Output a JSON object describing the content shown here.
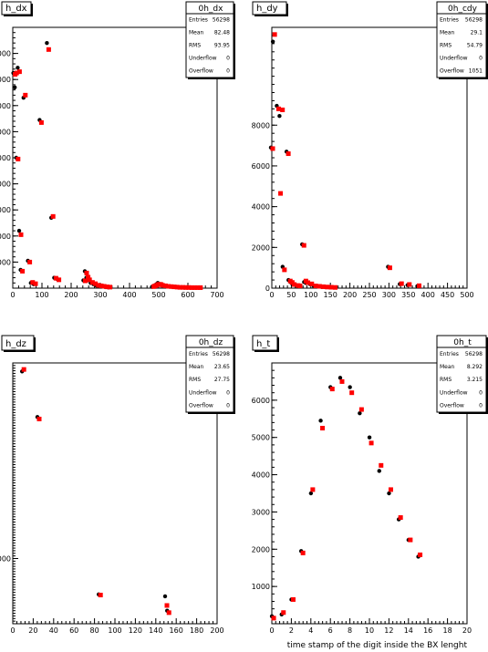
{
  "chart_data": [
    {
      "type": "scatter",
      "title": "h_dx",
      "xlabel": "",
      "xlim": [
        0,
        700
      ],
      "ylim": [
        0,
        10000
      ],
      "xticks": [
        0,
        100,
        200,
        300,
        400,
        500,
        600,
        700
      ],
      "yticks": [
        1000,
        2000,
        3000,
        4000,
        5000,
        6000,
        7000,
        8000,
        9000
      ],
      "stats": {
        "title": "0h_dx",
        "rows": [
          [
            "Entries",
            "56298"
          ],
          [
            "Mean",
            "82.48"
          ],
          [
            "RMS",
            "93.95"
          ],
          [
            "Underflow",
            "0"
          ],
          [
            "Overflow",
            "0"
          ]
        ]
      },
      "series": [
        {
          "color": "#000000",
          "x": [
            5,
            10,
            15,
            20,
            25,
            30,
            40,
            55,
            65,
            75,
            95,
            120,
            135,
            145,
            155,
            245,
            250,
            255,
            260,
            270,
            280,
            290,
            300,
            310,
            320,
            330,
            480,
            485,
            490,
            495,
            500,
            505,
            510,
            520,
            530,
            540,
            550,
            560,
            570,
            580,
            590,
            600,
            610,
            620,
            630,
            640
          ],
          "y": [
            8250,
            7700,
            5000,
            8450,
            2200,
            700,
            7300,
            1050,
            200,
            150,
            6450,
            9400,
            2700,
            400,
            350,
            300,
            650,
            400,
            300,
            200,
            150,
            100,
            80,
            60,
            40,
            30,
            50,
            80,
            100,
            150,
            200,
            150,
            120,
            100,
            80,
            60,
            50,
            40,
            30,
            30,
            20,
            20,
            20,
            20,
            20,
            20
          ]
        },
        {
          "color": "#ff0000",
          "x": [
            5,
            10,
            15,
            20,
            25,
            30,
            40,
            55,
            65,
            75,
            95,
            120,
            135,
            145,
            155,
            245,
            250,
            255,
            260,
            270,
            280,
            290,
            300,
            310,
            320,
            330,
            480,
            485,
            490,
            495,
            500,
            505,
            510,
            520,
            530,
            540,
            550,
            560,
            570,
            580,
            590,
            600,
            610,
            620,
            630,
            640
          ],
          "y": [
            8200,
            8250,
            4950,
            8300,
            2050,
            650,
            7400,
            1000,
            220,
            170,
            6350,
            9150,
            2750,
            380,
            320,
            280,
            580,
            420,
            320,
            220,
            170,
            110,
            90,
            70,
            50,
            40,
            60,
            90,
            110,
            140,
            150,
            140,
            110,
            90,
            70,
            60,
            50,
            40,
            30,
            30,
            25,
            25,
            20,
            20,
            20,
            20
          ]
        }
      ]
    },
    {
      "type": "scatter",
      "title": "h_dy",
      "xlabel": "",
      "xlim": [
        0,
        500
      ],
      "ylim": [
        0,
        12800
      ],
      "xticks": [
        0,
        50,
        100,
        150,
        200,
        250,
        300,
        350,
        400,
        450,
        500
      ],
      "yticks": [
        0,
        2000,
        4000,
        6000,
        8000
      ],
      "stats": {
        "title": "0h_cdy",
        "rows": [
          [
            "Entries",
            "56298"
          ],
          [
            "Mean",
            "29.1"
          ],
          [
            "RMS",
            "54.79"
          ],
          [
            "Underflow",
            "0"
          ],
          [
            "Overflow",
            "1051"
          ]
        ]
      },
      "series": [
        {
          "color": "#000000",
          "x": [
            0,
            5,
            15,
            22,
            30,
            40,
            45,
            50,
            55,
            65,
            70,
            80,
            85,
            90,
            100,
            110,
            120,
            130,
            140,
            150,
            160,
            300,
            330,
            350,
            375
          ],
          "y": [
            6900,
            12100,
            8950,
            8450,
            1050,
            6700,
            400,
            300,
            200,
            150,
            100,
            2150,
            300,
            250,
            200,
            100,
            80,
            60,
            50,
            40,
            30,
            1050,
            200,
            150,
            100
          ]
        },
        {
          "color": "#ff0000",
          "x": [
            0,
            5,
            15,
            20,
            25,
            30,
            40,
            45,
            50,
            55,
            65,
            70,
            80,
            85,
            90,
            100,
            110,
            120,
            130,
            140,
            150,
            160,
            300,
            330,
            350,
            375
          ],
          "y": [
            6850,
            12450,
            8800,
            4650,
            8750,
            900,
            6600,
            350,
            280,
            180,
            130,
            110,
            2100,
            350,
            270,
            210,
            110,
            90,
            70,
            55,
            45,
            35,
            1000,
            220,
            180,
            120
          ]
        }
      ]
    },
    {
      "type": "scatter",
      "title": "h_dz",
      "xlabel": "",
      "xlim": [
        0,
        200
      ],
      "ylim": [
        0,
        20000
      ],
      "xticks": [
        0,
        20,
        40,
        60,
        80,
        100,
        120,
        140,
        160,
        180,
        200
      ],
      "yticks": [
        5000
      ],
      "stats": {
        "title": "0h_dz",
        "rows": [
          [
            "Entries",
            "56298"
          ],
          [
            "Mean",
            "23.65"
          ],
          [
            "RMS",
            "27.75"
          ],
          [
            "Underflow",
            "0"
          ],
          [
            "Overflow",
            "0"
          ]
        ]
      },
      "series": [
        {
          "color": "#000000",
          "x": [
            10,
            25,
            85,
            150,
            152
          ],
          "y": [
            19350,
            15850,
            2250,
            2100,
            1000
          ]
        },
        {
          "color": "#ff0000",
          "x": [
            10,
            25,
            85,
            150,
            152
          ],
          "y": [
            19500,
            15700,
            2200,
            1400,
            850
          ]
        }
      ]
    },
    {
      "type": "scatter",
      "title": "h_t",
      "xlabel": "time stamp of the digit inside the BX lenght",
      "xlim": [
        0,
        20
      ],
      "ylim": [
        0,
        7000
      ],
      "xticks": [
        0,
        2,
        4,
        6,
        8,
        10,
        12,
        14,
        16,
        18,
        20
      ],
      "yticks": [
        1000,
        2000,
        3000,
        4000,
        5000,
        6000
      ],
      "stats": {
        "title": "0h_t",
        "rows": [
          [
            "Entries",
            "56298"
          ],
          [
            "Mean",
            "8.292"
          ],
          [
            "RMS",
            "3.215"
          ],
          [
            "Underflow",
            "0"
          ],
          [
            "Overflow",
            "0"
          ]
        ]
      },
      "series": [
        {
          "color": "#000000",
          "x": [
            0.1,
            1.1,
            2.1,
            3.1,
            4.1,
            5.1,
            6.1,
            7.1,
            8.1,
            9.1,
            10.1,
            11.1,
            12.1,
            13.1,
            14.1,
            15.1
          ],
          "y": [
            200,
            250,
            650,
            1950,
            3500,
            5450,
            6350,
            6600,
            6350,
            5650,
            5000,
            4100,
            3500,
            2800,
            2250,
            1800
          ]
        },
        {
          "color": "#ff0000",
          "x": [
            0.1,
            1.1,
            2.1,
            3.1,
            4.1,
            5.1,
            6.1,
            7.1,
            8.1,
            9.1,
            10.1,
            11.1,
            12.1,
            13.1,
            14.1,
            15.1
          ],
          "y": [
            150,
            300,
            650,
            1900,
            3600,
            5250,
            6300,
            6500,
            6200,
            5750,
            4850,
            4250,
            3600,
            2850,
            2250,
            1850
          ]
        }
      ]
    }
  ]
}
